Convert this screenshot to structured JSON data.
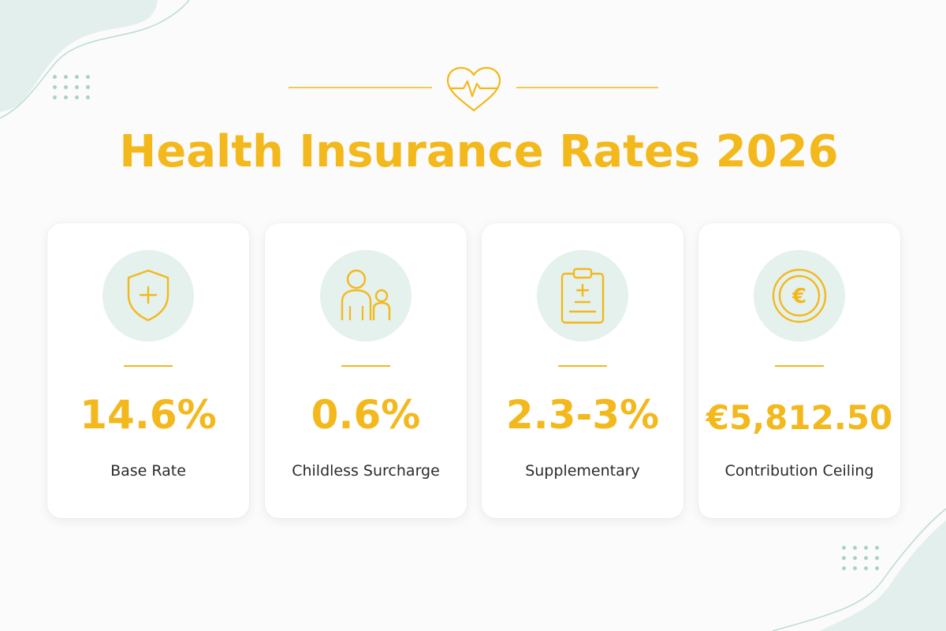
{
  "title": "Health Insurance Rates 2026",
  "colors": {
    "accent": "#f3b81c",
    "icon_bg": "#e4f1ed",
    "decor": "#a9d1c8"
  },
  "cards": [
    {
      "icon": "shield-plus-icon",
      "value": "14.6%",
      "label": "Base Rate"
    },
    {
      "icon": "parent-child-icon",
      "value": "0.6%",
      "label": "Childless Surcharge"
    },
    {
      "icon": "clipboard-plus-minus-icon",
      "value": "2.3-3%",
      "label": "Supplementary"
    },
    {
      "icon": "euro-coin-icon",
      "value": "€5,812.50",
      "label": "Contribution Ceiling"
    }
  ]
}
